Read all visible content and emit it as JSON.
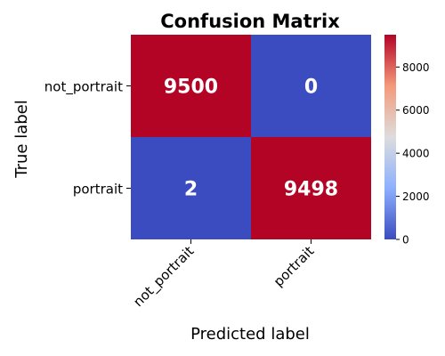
{
  "chart_data": {
    "type": "heatmap",
    "title": "Confusion Matrix",
    "xlabel": "Predicted label",
    "ylabel": "True label",
    "x_categories": [
      "not_portrait",
      "portrait"
    ],
    "y_categories": [
      "not_portrait",
      "portrait"
    ],
    "values": [
      [
        9500,
        0
      ],
      [
        2,
        9498
      ]
    ],
    "colormap": "coolwarm",
    "colorbar": {
      "min": 0,
      "max": 9500,
      "ticks": [
        0,
        2000,
        4000,
        6000,
        8000
      ]
    },
    "annotation_color": "#ffffff"
  }
}
